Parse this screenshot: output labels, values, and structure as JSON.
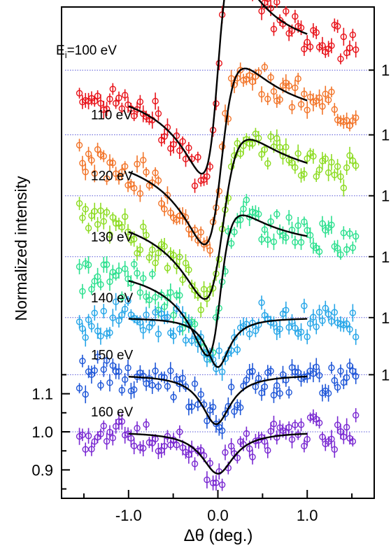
{
  "chart_data": {
    "type": "scatter",
    "xlabel": "Δθ (deg.)",
    "ylabel": "Normalized intensity",
    "xlim": [
      -1.75,
      1.75
    ],
    "xticks": [
      -1.0,
      0.0,
      1.0
    ],
    "xtick_labels": [
      "-1.0",
      "0.0",
      "1.0"
    ],
    "yticks": [
      0.9,
      1.0,
      1.1
    ],
    "ytick_labels": [
      "0.9",
      "1.0",
      "1.1"
    ],
    "grid": false,
    "baseline_style": "dotted blue line at each trace's 1.0 level",
    "right_axis_labels": [
      "1",
      "1",
      "1",
      "1",
      "1",
      "1"
    ],
    "fit_curve_color": "#000000",
    "series": [
      {
        "name": "Ei=100 eV",
        "label": "E_i=100 eV",
        "color": "#e8141b",
        "type": "dip-peak",
        "amplitude": 0.34,
        "x0": 0.0,
        "width": 0.18,
        "asym": 1.0,
        "offset": 0.95
      },
      {
        "name": "110 eV",
        "label": "110 eV",
        "color": "#f2752a",
        "type": "dip-peak",
        "amplitude": 0.28,
        "x0": 0.02,
        "width": 0.22,
        "asym": 0.55,
        "offset": 0.78
      },
      {
        "name": "120 eV",
        "label": "120 eV",
        "color": "#8ddc22",
        "type": "dip-peak",
        "amplitude": 0.25,
        "x0": 0.03,
        "width": 0.24,
        "asym": 0.45,
        "offset": 0.62
      },
      {
        "name": "130 eV",
        "label": "130 eV",
        "color": "#2de08f",
        "type": "dip-peak",
        "amplitude": 0.21,
        "x0": 0.0,
        "width": 0.18,
        "asym": 0.2,
        "offset": 0.46
      },
      {
        "name": "140 eV",
        "label": "140 eV",
        "color": "#27a6e8",
        "type": "dip",
        "amplitude": 0.13,
        "x0": 0.0,
        "width": 0.16,
        "offset": 0.3
      },
      {
        "name": "150 eV",
        "label": "150 eV",
        "color": "#1f57d8",
        "type": "dip",
        "amplitude": 0.13,
        "x0": -0.02,
        "width": 0.2,
        "offset": 0.15
      },
      {
        "name": "160 eV",
        "label": "160 eV",
        "color": "#7a29d2",
        "type": "dip",
        "amplitude": 0.11,
        "x0": 0.0,
        "width": 0.22,
        "offset": 0.0
      }
    ]
  }
}
